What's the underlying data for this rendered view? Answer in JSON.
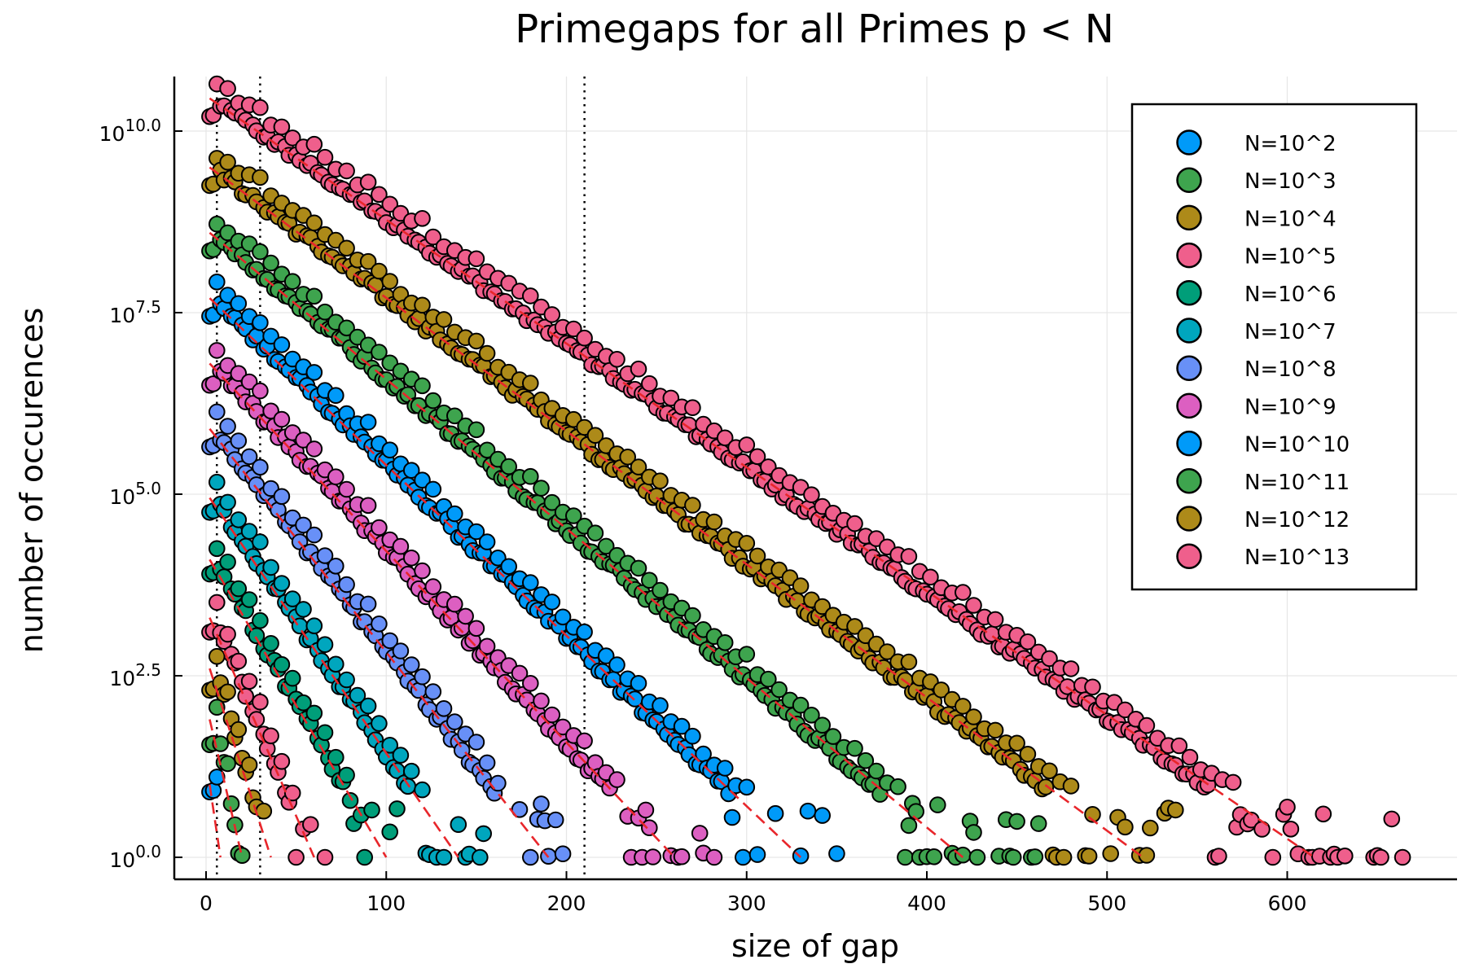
{
  "chart_data": {
    "type": "scatter",
    "title": "Primegaps for all Primes p < N",
    "xlabel": "size of gap",
    "ylabel": "number of occurences",
    "xlim": [
      -18,
      690
    ],
    "ylim": [
      -0.17,
      10.75
    ],
    "y_scale": "log10",
    "grid": true,
    "legend_position": "top-right",
    "x_ticks": [
      0,
      100,
      200,
      300,
      400,
      500,
      600
    ],
    "x_tick_labels": [
      "0",
      "100",
      "200",
      "300",
      "400",
      "500",
      "600"
    ],
    "y_ticks": [
      0.0,
      2.5,
      5.0,
      7.5,
      10.0
    ],
    "y_tick_labels": [
      {
        "base": "10",
        "exp": "0.0"
      },
      {
        "base": "10",
        "exp": "2.5"
      },
      {
        "base": "10",
        "exp": "5.0"
      },
      {
        "base": "10",
        "exp": "7.5"
      },
      {
        "base": "10",
        "exp": "10.0"
      }
    ],
    "vlines": [
      6,
      30,
      210
    ],
    "vline_style": "dotted",
    "fit_line_color": "#e8262b",
    "fit_line_style": "dashed",
    "series": [
      {
        "name": "N=10^2",
        "color": "#009af9",
        "max_gap": 8,
        "log_count_gap2": 0.9,
        "log_count_gap6": 0.9,
        "fit": [
          [
            2,
            1.0
          ],
          [
            8,
            0.0
          ]
        ]
      },
      {
        "name": "N=10^3",
        "color": "#3ea44e",
        "max_gap": 20,
        "log_count_gap2": 1.55,
        "log_count_gap6": 1.9,
        "fit": [
          [
            2,
            1.9
          ],
          [
            20,
            0.0
          ]
        ]
      },
      {
        "name": "N=10^4",
        "color": "#ad8a19",
        "max_gap": 36,
        "log_count_gap2": 2.3,
        "log_count_gap6": 2.6,
        "fit": [
          [
            2,
            2.6
          ],
          [
            36,
            0.0
          ]
        ]
      },
      {
        "name": "N=10^5",
        "color": "#ef5f8c",
        "max_gap": 72,
        "log_count_gap2": 3.1,
        "log_count_gap6": 3.3,
        "fit": [
          [
            2,
            3.3
          ],
          [
            60,
            0.0
          ]
        ]
      },
      {
        "name": "N=10^6",
        "color": "#009e79",
        "max_gap": 114,
        "log_count_gap2": 3.9,
        "log_count_gap6": 4.1,
        "fit": [
          [
            2,
            4.1
          ],
          [
            100,
            0.0
          ]
        ]
      },
      {
        "name": "N=10^7",
        "color": "#00a6be",
        "max_gap": 154,
        "log_count_gap2": 4.75,
        "log_count_gap6": 4.95,
        "fit": [
          [
            2,
            4.95
          ],
          [
            140,
            0.0
          ]
        ]
      },
      {
        "name": "N=10^8",
        "color": "#6890f7",
        "max_gap": 198,
        "log_count_gap2": 5.65,
        "log_count_gap6": 5.9,
        "fit": [
          [
            2,
            5.9
          ],
          [
            190,
            0.0
          ]
        ]
      },
      {
        "name": "N=10^9",
        "color": "#dc5fc1",
        "max_gap": 282,
        "log_count_gap2": 6.5,
        "log_count_gap6": 6.8,
        "fit": [
          [
            2,
            6.8
          ],
          [
            260,
            0.0
          ]
        ]
      },
      {
        "name": "N=10^10",
        "color": "#009af9",
        "max_gap": 354,
        "log_count_gap2": 7.45,
        "log_count_gap6": 7.7,
        "fit": [
          [
            2,
            7.7
          ],
          [
            330,
            0.0
          ]
        ]
      },
      {
        "name": "N=10^11",
        "color": "#3ea44e",
        "max_gap": 464,
        "log_count_gap2": 8.35,
        "log_count_gap6": 8.6,
        "fit": [
          [
            2,
            8.6
          ],
          [
            420,
            0.0
          ]
        ]
      },
      {
        "name": "N=10^12",
        "color": "#ad8a19",
        "max_gap": 540,
        "log_count_gap2": 9.25,
        "log_count_gap6": 9.5,
        "fit": [
          [
            2,
            9.5
          ],
          [
            520,
            0.0
          ]
        ]
      },
      {
        "name": "N=10^13",
        "color": "#ef5f8c",
        "max_gap": 674,
        "log_count_gap2": 10.2,
        "log_count_gap6": 10.45,
        "fit": [
          [
            2,
            10.45
          ],
          [
            615,
            0.0
          ]
        ]
      }
    ]
  }
}
